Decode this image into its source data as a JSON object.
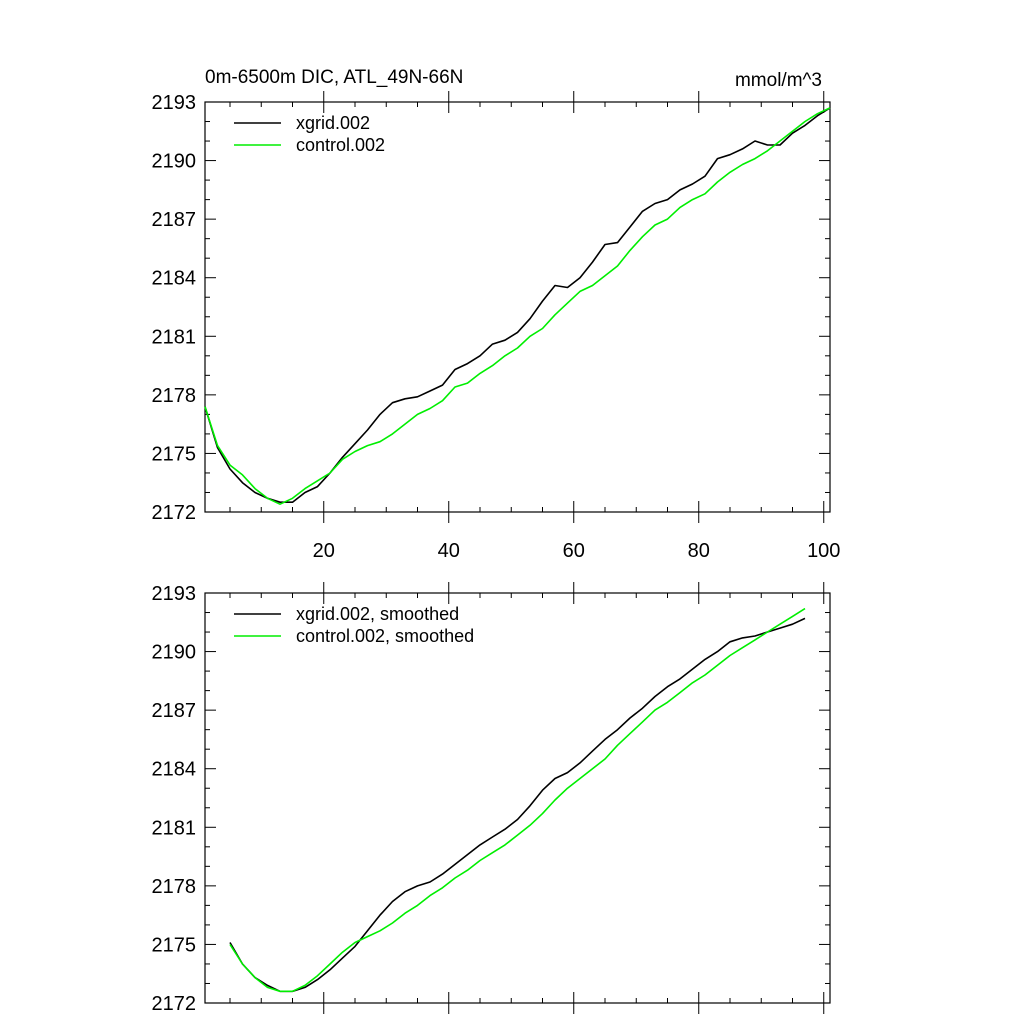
{
  "colors": {
    "series_a": "#000000",
    "series_b": "#00ee00"
  },
  "chart_data": [
    {
      "type": "line",
      "title": "0m-6500m DIC, ATL_49N-66N",
      "units": "mmol/m^3",
      "xlabel": "",
      "ylabel": "",
      "xlim": [
        1,
        101
      ],
      "ylim": [
        2172,
        2193
      ],
      "x_ticks": [
        20,
        40,
        60,
        80,
        100
      ],
      "y_ticks": [
        2172,
        2175,
        2178,
        2181,
        2184,
        2187,
        2190,
        2193
      ],
      "y_tick_labels": [
        "2172",
        "2175",
        "2178",
        "2181",
        "2184",
        "2187",
        "2190",
        "2193"
      ],
      "x_tick_labels": [
        "20",
        "40",
        "60",
        "80",
        "100"
      ],
      "legend": "top-left",
      "series": [
        {
          "name": "xgrid.002",
          "color": "#000000",
          "x": [
            1,
            3,
            5,
            7,
            9,
            11,
            13,
            15,
            17,
            19,
            21,
            23,
            25,
            27,
            29,
            31,
            33,
            35,
            37,
            39,
            41,
            43,
            45,
            47,
            49,
            51,
            53,
            55,
            57,
            59,
            61,
            63,
            65,
            67,
            69,
            71,
            73,
            75,
            77,
            79,
            81,
            83,
            85,
            87,
            89,
            91,
            93,
            95,
            97,
            99,
            101
          ],
          "y": [
            2177.4,
            2175.3,
            2174.2,
            2173.5,
            2173.0,
            2172.7,
            2172.5,
            2172.5,
            2173.0,
            2173.3,
            2174.0,
            2174.8,
            2175.5,
            2176.2,
            2177.0,
            2177.6,
            2177.8,
            2177.9,
            2178.2,
            2178.5,
            2179.3,
            2179.6,
            2180.0,
            2180.6,
            2180.8,
            2181.2,
            2181.9,
            2182.8,
            2183.6,
            2183.5,
            2184.0,
            2184.8,
            2185.7,
            2185.8,
            2186.6,
            2187.4,
            2187.8,
            2188.0,
            2188.5,
            2188.8,
            2189.2,
            2190.1,
            2190.3,
            2190.6,
            2191.0,
            2190.8,
            2190.8,
            2191.4,
            2191.8,
            2192.3,
            2192.7
          ]
        },
        {
          "name": "control.002",
          "color": "#00ee00",
          "x": [
            1,
            3,
            5,
            7,
            9,
            11,
            13,
            15,
            17,
            19,
            21,
            23,
            25,
            27,
            29,
            31,
            33,
            35,
            37,
            39,
            41,
            43,
            45,
            47,
            49,
            51,
            53,
            55,
            57,
            59,
            61,
            63,
            65,
            67,
            69,
            71,
            73,
            75,
            77,
            79,
            81,
            83,
            85,
            87,
            89,
            91,
            93,
            95,
            97,
            99,
            101
          ],
          "y": [
            2177.4,
            2175.4,
            2174.4,
            2173.9,
            2173.2,
            2172.7,
            2172.4,
            2172.7,
            2173.2,
            2173.6,
            2174.0,
            2174.7,
            2175.1,
            2175.4,
            2175.6,
            2176.0,
            2176.5,
            2177.0,
            2177.3,
            2177.7,
            2178.4,
            2178.6,
            2179.1,
            2179.5,
            2180.0,
            2180.4,
            2181.0,
            2181.4,
            2182.1,
            2182.7,
            2183.3,
            2183.6,
            2184.1,
            2184.6,
            2185.4,
            2186.1,
            2186.7,
            2187.0,
            2187.6,
            2188.0,
            2188.3,
            2188.9,
            2189.4,
            2189.8,
            2190.1,
            2190.5,
            2191.0,
            2191.5,
            2192.0,
            2192.4,
            2192.7
          ]
        }
      ]
    },
    {
      "type": "line",
      "title": "",
      "xlabel": "",
      "ylabel": "",
      "xlim": [
        1,
        101
      ],
      "ylim": [
        2172,
        2193
      ],
      "x_ticks": [
        20,
        40,
        60,
        80,
        100
      ],
      "y_ticks": [
        2172,
        2175,
        2178,
        2181,
        2184,
        2187,
        2190,
        2193
      ],
      "y_tick_labels": [
        "2172",
        "2175",
        "2178",
        "2181",
        "2184",
        "2187",
        "2190",
        "2193"
      ],
      "legend": "top-left",
      "series": [
        {
          "name": "xgrid.002, smoothed",
          "color": "#000000",
          "x": [
            5,
            7,
            9,
            11,
            13,
            15,
            17,
            19,
            21,
            23,
            25,
            27,
            29,
            31,
            33,
            35,
            37,
            39,
            41,
            43,
            45,
            47,
            49,
            51,
            53,
            55,
            57,
            59,
            61,
            63,
            65,
            67,
            69,
            71,
            73,
            75,
            77,
            79,
            81,
            83,
            85,
            87,
            89,
            91,
            93,
            95,
            97
          ],
          "y": [
            2175.1,
            2174.0,
            2173.3,
            2172.9,
            2172.6,
            2172.6,
            2172.8,
            2173.2,
            2173.7,
            2174.3,
            2174.9,
            2175.7,
            2176.5,
            2177.2,
            2177.7,
            2178.0,
            2178.2,
            2178.6,
            2179.1,
            2179.6,
            2180.1,
            2180.5,
            2180.9,
            2181.4,
            2182.1,
            2182.9,
            2183.5,
            2183.8,
            2184.3,
            2184.9,
            2185.5,
            2186.0,
            2186.6,
            2187.1,
            2187.7,
            2188.2,
            2188.6,
            2189.1,
            2189.6,
            2190.0,
            2190.5,
            2190.7,
            2190.8,
            2191.0,
            2191.2,
            2191.4,
            2191.7
          ]
        },
        {
          "name": "control.002, smoothed",
          "color": "#00ee00",
          "x": [
            5,
            7,
            9,
            11,
            13,
            15,
            17,
            19,
            21,
            23,
            25,
            27,
            29,
            31,
            33,
            35,
            37,
            39,
            41,
            43,
            45,
            47,
            49,
            51,
            53,
            55,
            57,
            59,
            61,
            63,
            65,
            67,
            69,
            71,
            73,
            75,
            77,
            79,
            81,
            83,
            85,
            87,
            89,
            91,
            93,
            95,
            97
          ],
          "y": [
            2175.0,
            2174.0,
            2173.3,
            2172.8,
            2172.6,
            2172.6,
            2172.9,
            2173.4,
            2174.0,
            2174.6,
            2175.1,
            2175.4,
            2175.7,
            2176.1,
            2176.6,
            2177.0,
            2177.5,
            2177.9,
            2178.4,
            2178.8,
            2179.3,
            2179.7,
            2180.1,
            2180.6,
            2181.1,
            2181.7,
            2182.4,
            2183.0,
            2183.5,
            2184.0,
            2184.5,
            2185.2,
            2185.8,
            2186.4,
            2187.0,
            2187.4,
            2187.9,
            2188.4,
            2188.8,
            2189.3,
            2189.8,
            2190.2,
            2190.6,
            2191.0,
            2191.4,
            2191.8,
            2192.2
          ]
        }
      ]
    }
  ]
}
